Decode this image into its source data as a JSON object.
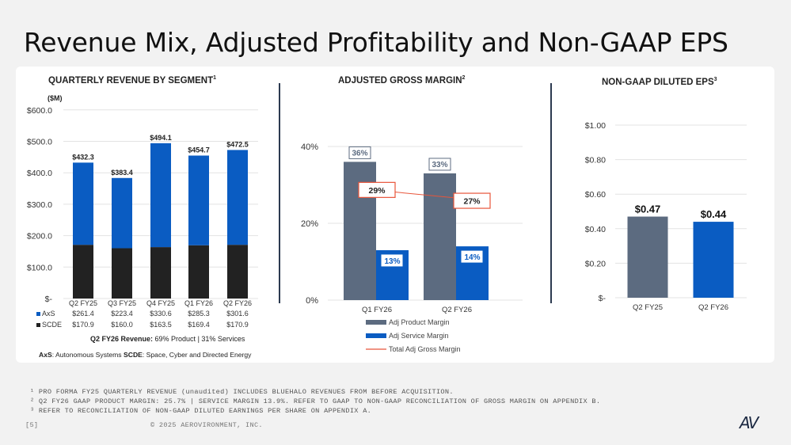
{
  "slide": {
    "title": "Revenue Mix, Adjusted Profitability and Non-GAAP EPS",
    "page_number": "[5]",
    "copyright": "© 2025 AEROVIRONMENT, INC.",
    "logo_text": "AV",
    "footnotes": [
      "¹ PRO FORMA FY25 QUARTERLY REVENUE (unaudited) INCLUDES BLUEHALO REVENUES FROM BEFORE ACQUISITION.",
      "² Q2 FY26 GAAP PRODUCT MARGIN: 25.7% | SERVICE MARGIN 13.9%.  REFER TO GAAP TO NON-GAAP RECONCILIATION OF GROSS MARGIN ON APPENDIX B.",
      "³ REFER TO RECONCILIATION OF NON-GAAP DILUTED EARNINGS PER SHARE ON APPENDIX A."
    ]
  },
  "colors": {
    "axs": "#0a5cc2",
    "scde": "#222222",
    "product": "#5c6b80",
    "service": "#0a5cc2",
    "total_line": "#e8553a",
    "divider": "#2c3a50"
  },
  "chart_data": [
    {
      "type": "bar",
      "stacked": true,
      "title": "QUARTERLY REVENUE BY SEGMENT",
      "title_sup": "1",
      "unit_label": "($M)",
      "categories": [
        "Q2 FY25",
        "Q3 FY25",
        "Q4 FY25",
        "Q1 FY26",
        "Q2 FY26"
      ],
      "series": [
        {
          "name": "SCDE",
          "values": [
            170.9,
            160.0,
            163.5,
            169.4,
            170.9
          ],
          "labels": [
            "$170.9",
            "$160.0",
            "$163.5",
            "$169.4",
            "$170.9"
          ]
        },
        {
          "name": "AxS",
          "values": [
            261.4,
            223.4,
            330.6,
            285.3,
            301.6
          ],
          "labels": [
            "$261.4",
            "$223.4",
            "$330.6",
            "$285.3",
            "$301.6"
          ]
        }
      ],
      "totals": [
        "$432.3",
        "$383.4",
        "$494.1",
        "$454.7",
        "$472.5"
      ],
      "ylim": [
        0,
        600
      ],
      "yticks": [
        "$-",
        "$100.0",
        "$200.0",
        "$300.0",
        "$400.0",
        "$500.0",
        "$600.0"
      ],
      "grid": true,
      "note_bold": "Q2 FY26 Revenue:",
      "note_text": " 69% Product | 31% Services",
      "legend_axs_bold": "AxS",
      "legend_axs_text": ": Autonomous Systems",
      "legend_scde_bold": "SCDE",
      "legend_scde_text": ": Space, Cyber and Directed Energy"
    },
    {
      "type": "bar",
      "title": "ADJUSTED GROSS MARGIN",
      "title_sup": "2",
      "categories": [
        "Q1 FY26",
        "Q2 FY26"
      ],
      "series": [
        {
          "name": "Adj Product Margin",
          "values": [
            36,
            33
          ],
          "labels": [
            "36%",
            "33%"
          ]
        },
        {
          "name": "Adj Service Margin",
          "values": [
            13,
            14
          ],
          "labels": [
            "13%",
            "14%"
          ]
        },
        {
          "name": "Total Adj Gross Margin",
          "type": "line",
          "values": [
            29,
            27
          ],
          "labels": [
            "29%",
            "27%"
          ]
        }
      ],
      "ylim": [
        0,
        40
      ],
      "yticks": [
        "0%",
        "20%",
        "40%"
      ],
      "grid": true,
      "legend_position": "bottom"
    },
    {
      "type": "bar",
      "title": "NON-GAAP DILUTED EPS",
      "title_sup": "3",
      "categories": [
        "Q2 FY25",
        "Q2 FY26"
      ],
      "values": [
        0.47,
        0.44
      ],
      "labels": [
        "$0.47",
        "$0.44"
      ],
      "ylim": [
        0,
        1.0
      ],
      "yticks": [
        "$-",
        "$0.20",
        "$0.40",
        "$0.60",
        "$0.80",
        "$1.00"
      ],
      "grid": true
    }
  ]
}
